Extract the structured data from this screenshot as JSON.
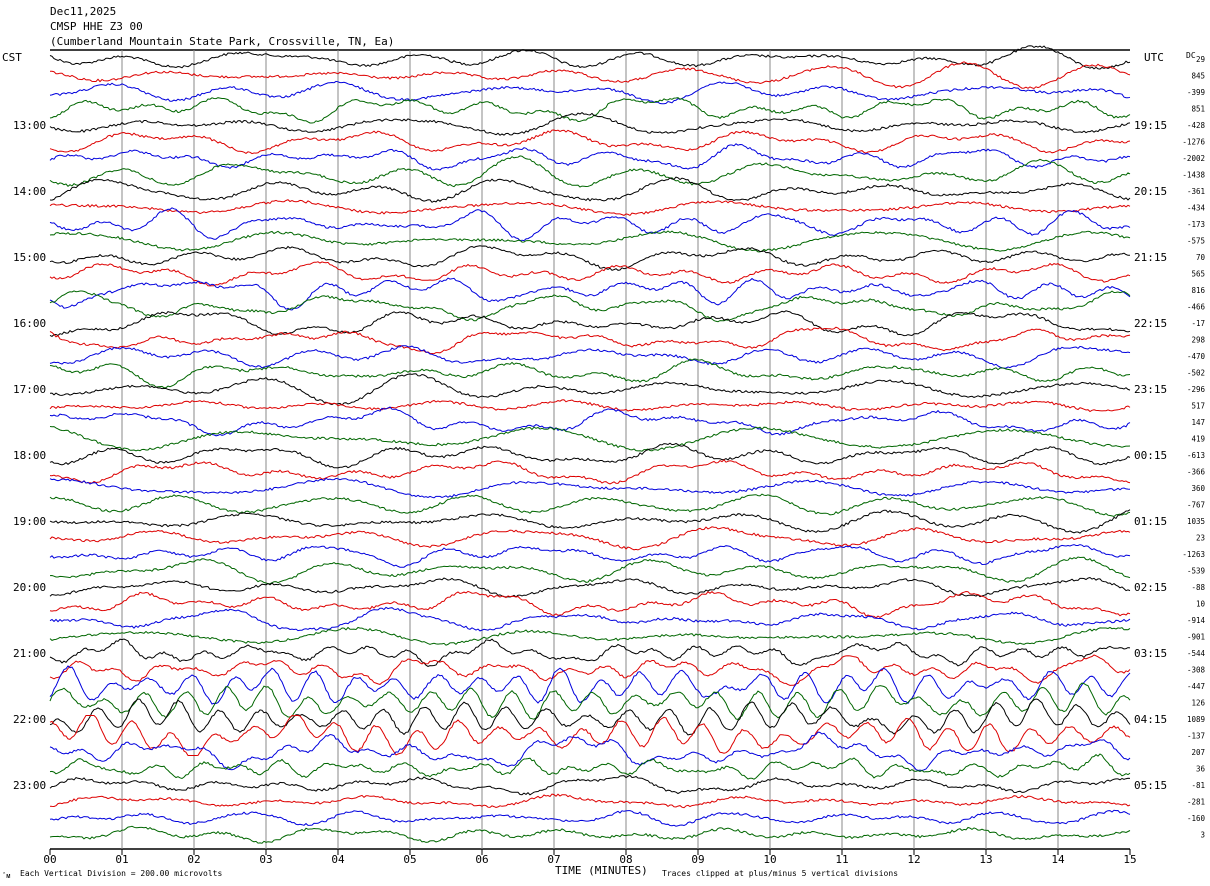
{
  "header": {
    "date": "Dec11,2025",
    "station": "CMSP HHE Z3 00",
    "location": "(Cumberland Mountain State Park, Crossville, TN, Ea)"
  },
  "left_axis_label": "CST",
  "right_axis_label": "UTC",
  "dc_label": "DC",
  "footer": {
    "scale_note": "Each Vertical Division =  200.00 microvolts",
    "xlabel": "TIME (MINUTES)",
    "clip_note": "Traces clipped at plus/minus 5 vertical divisions",
    "corner_mark": "ˆᴍ"
  },
  "chart_data": {
    "type": "line",
    "title": "CMSP HHE Z3 00",
    "xlabel": "TIME (MINUTES)",
    "x_ticks": [
      "00",
      "01",
      "02",
      "03",
      "04",
      "05",
      "06",
      "07",
      "08",
      "09",
      "10",
      "11",
      "12",
      "13",
      "14",
      "15"
    ],
    "xlim": [
      0,
      15
    ],
    "vertical_grid": true,
    "cst_hour_labels": [
      "13:00",
      "14:00",
      "15:00",
      "16:00",
      "17:00",
      "18:00",
      "19:00",
      "20:00",
      "21:00",
      "22:00",
      "23:00"
    ],
    "utc_hour_labels": [
      "19:15",
      "20:15",
      "21:15",
      "22:15",
      "23:15",
      "00:15",
      "01:15",
      "02:15",
      "03:15",
      "04:15",
      "05:15"
    ],
    "trace_colors": [
      "#000000",
      "#dd0000",
      "#0000dd",
      "#006600"
    ],
    "trace_count": 48,
    "active_trace_window": [
      36,
      43
    ],
    "dc_offsets": [
      29,
      845,
      -399,
      851,
      -428,
      -1276,
      -2002,
      -1438,
      -361,
      -434,
      -173,
      -575,
      70,
      565,
      816,
      -466,
      -17,
      298,
      -470,
      -502,
      -296,
      517,
      147,
      419,
      -613,
      -366,
      360,
      -767,
      1035,
      23,
      -1263,
      -539,
      -88,
      10,
      -914,
      -901,
      -544,
      -308,
      -447,
      126,
      1089,
      -137,
      207,
      36,
      -81,
      -281,
      -160,
      3
    ]
  }
}
